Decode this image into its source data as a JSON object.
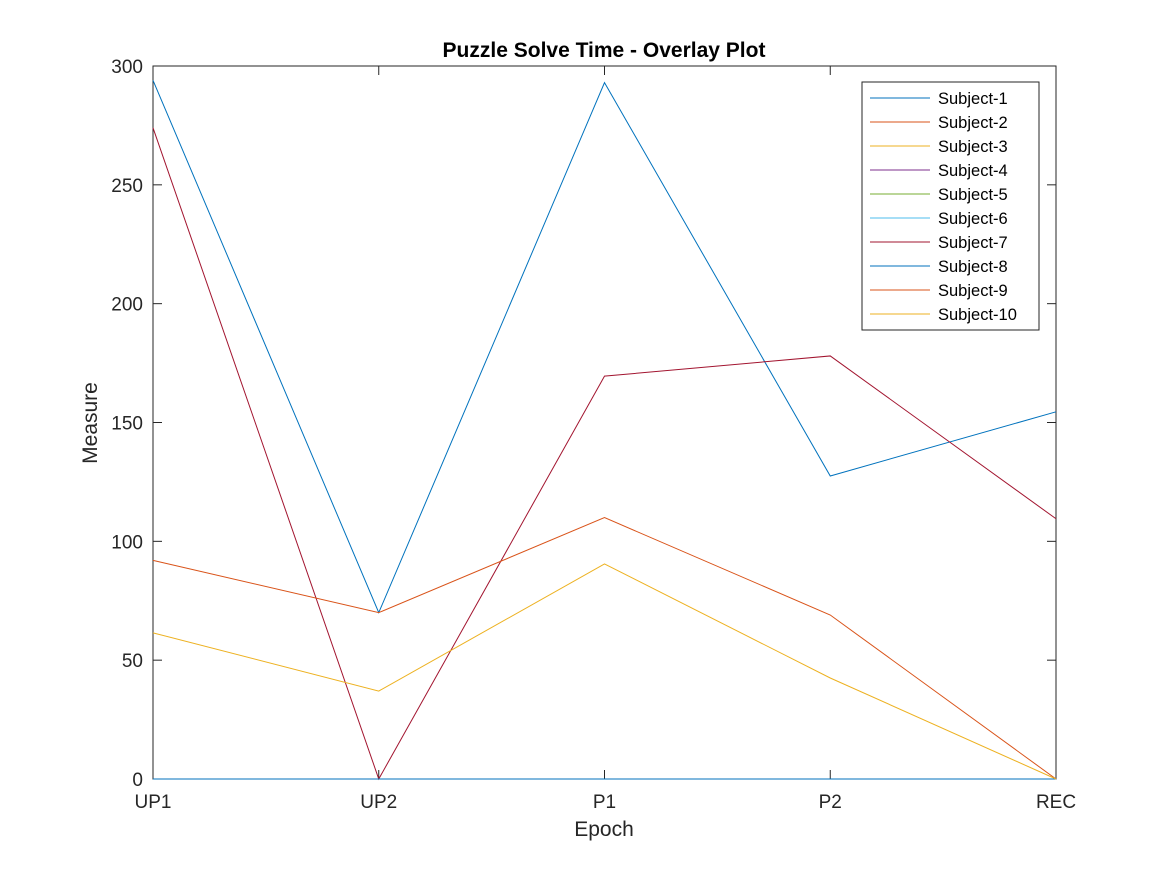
{
  "chart_data": {
    "type": "line",
    "title": "Puzzle Solve Time - Overlay Plot",
    "xlabel": "Epoch",
    "ylabel": "Measure",
    "categories": [
      "UP1",
      "UP2",
      "P1",
      "P2",
      "REC"
    ],
    "ylim": [
      0,
      300
    ],
    "yticks": [
      0,
      50,
      100,
      150,
      200,
      250,
      300
    ],
    "grid": false,
    "legend_position": "top-right",
    "series": [
      {
        "name": "Subject-1",
        "color": "#0072BD",
        "values": [
          294,
          70,
          293,
          127.5,
          154.5
        ]
      },
      {
        "name": "Subject-2",
        "color": "#D95319",
        "values": [
          0,
          0,
          0,
          0,
          0
        ]
      },
      {
        "name": "Subject-3",
        "color": "#EDB120",
        "values": [
          0,
          0,
          0,
          0,
          0
        ]
      },
      {
        "name": "Subject-4",
        "color": "#7E2F8E",
        "values": [
          0,
          0,
          0,
          0,
          0
        ]
      },
      {
        "name": "Subject-5",
        "color": "#77AC30",
        "values": [
          0,
          0,
          0,
          0,
          0
        ]
      },
      {
        "name": "Subject-6",
        "color": "#4DBEEE",
        "values": [
          0,
          0,
          0,
          0,
          0
        ]
      },
      {
        "name": "Subject-7",
        "color": "#A2142F",
        "values": [
          274,
          0,
          169.5,
          178,
          109.5
        ]
      },
      {
        "name": "Subject-8",
        "color": "#0072BD",
        "values": [
          0,
          0,
          0,
          0,
          0
        ]
      },
      {
        "name": "Subject-9",
        "color": "#D95319",
        "values": [
          92,
          70,
          110,
          69,
          0
        ]
      },
      {
        "name": "Subject-10",
        "color": "#EDB120",
        "values": [
          61.5,
          37,
          90.5,
          42.5,
          0
        ]
      }
    ]
  }
}
